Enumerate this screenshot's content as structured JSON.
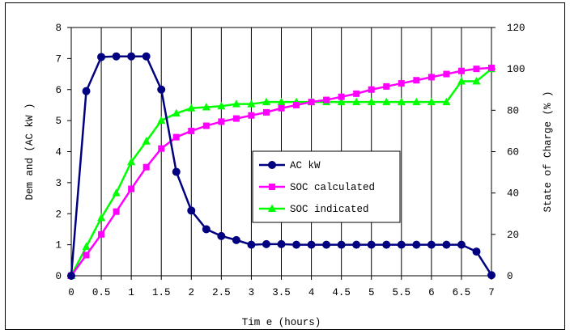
{
  "chart_data": {
    "type": "line",
    "xlabel": "Tim e (hours)",
    "ylabel_left": "Dem and (AC kW )",
    "ylabel_right": "State of Charge (% )",
    "xlim": [
      0,
      7
    ],
    "ylim_left": [
      0,
      8
    ],
    "ylim_right": [
      0,
      120
    ],
    "x_ticks": [
      "0",
      "0.5",
      "1",
      "1.5",
      "2",
      "2.5",
      "3",
      "3.5",
      "4",
      "4.5",
      "5",
      "5.5",
      "6",
      "6.5",
      "7"
    ],
    "x_tick_values": [
      0,
      0.5,
      1,
      1.5,
      2,
      2.5,
      3,
      3.5,
      4,
      4.5,
      5,
      5.5,
      6,
      6.5,
      7
    ],
    "y_ticks_left": [
      "0",
      "1",
      "2",
      "3",
      "4",
      "5",
      "6",
      "7",
      "8"
    ],
    "y_tick_values_left": [
      0,
      1,
      2,
      3,
      4,
      5,
      6,
      7,
      8
    ],
    "y_ticks_right": [
      "0",
      "20",
      "40",
      "60",
      "80",
      "100",
      "120"
    ],
    "y_tick_values_right": [
      0,
      20,
      40,
      60,
      80,
      100,
      120
    ],
    "grid": "vertical",
    "legend_position": "center-right",
    "series": [
      {
        "name": "AC kW",
        "axis": "left",
        "color": "#000080",
        "marker": "circle",
        "x": [
          0,
          0.25,
          0.5,
          0.75,
          1,
          1.25,
          1.5,
          1.75,
          2,
          2.25,
          2.5,
          2.75,
          3,
          3.25,
          3.5,
          3.75,
          4,
          4.25,
          4.5,
          4.75,
          5,
          5.25,
          5.5,
          5.75,
          6,
          6.25,
          6.5,
          6.75,
          7
        ],
        "y": [
          0,
          5.95,
          7.05,
          7.07,
          7.07,
          7.07,
          6.0,
          3.35,
          2.1,
          1.5,
          1.28,
          1.15,
          1.0,
          1.02,
          1.02,
          1.0,
          1.0,
          1.0,
          1.0,
          1.0,
          1.0,
          1.0,
          1.0,
          1.0,
          1.0,
          1.0,
          1.0,
          0.78,
          0.02
        ]
      },
      {
        "name": "SOC calculated",
        "axis": "right",
        "color": "#ff00ff",
        "marker": "square",
        "x": [
          0,
          0.25,
          0.5,
          0.75,
          1,
          1.25,
          1.5,
          1.75,
          2,
          2.25,
          2.5,
          2.75,
          3,
          3.25,
          3.5,
          3.75,
          4,
          4.25,
          4.5,
          4.75,
          5,
          5.25,
          5.5,
          5.75,
          6,
          6.25,
          6.5,
          6.75,
          7
        ],
        "y": [
          0,
          10,
          20,
          31,
          42,
          52.5,
          61.5,
          67,
          70,
          72.5,
          74.5,
          76,
          77.5,
          79,
          81,
          82.5,
          84,
          85,
          86.5,
          88,
          90,
          91.5,
          93,
          94.5,
          96,
          97.5,
          99,
          100,
          100.5
        ]
      },
      {
        "name": "SOC indicated",
        "axis": "right",
        "color": "#00ff00",
        "marker": "triangle",
        "x": [
          0,
          0.25,
          0.5,
          0.75,
          1,
          1.25,
          1.5,
          1.75,
          2,
          2.25,
          2.5,
          2.75,
          3,
          3.25,
          3.5,
          3.75,
          4,
          4.25,
          4.5,
          4.75,
          5,
          5.25,
          5.5,
          5.75,
          6,
          6.25,
          6.5,
          6.75,
          7
        ],
        "y": [
          0,
          14,
          28,
          40,
          55,
          65,
          75,
          78.5,
          81,
          81.5,
          82,
          83,
          83,
          84,
          84,
          84,
          84,
          84,
          84,
          84,
          84,
          84,
          84,
          84,
          84,
          84,
          94,
          94,
          100
        ]
      }
    ]
  }
}
